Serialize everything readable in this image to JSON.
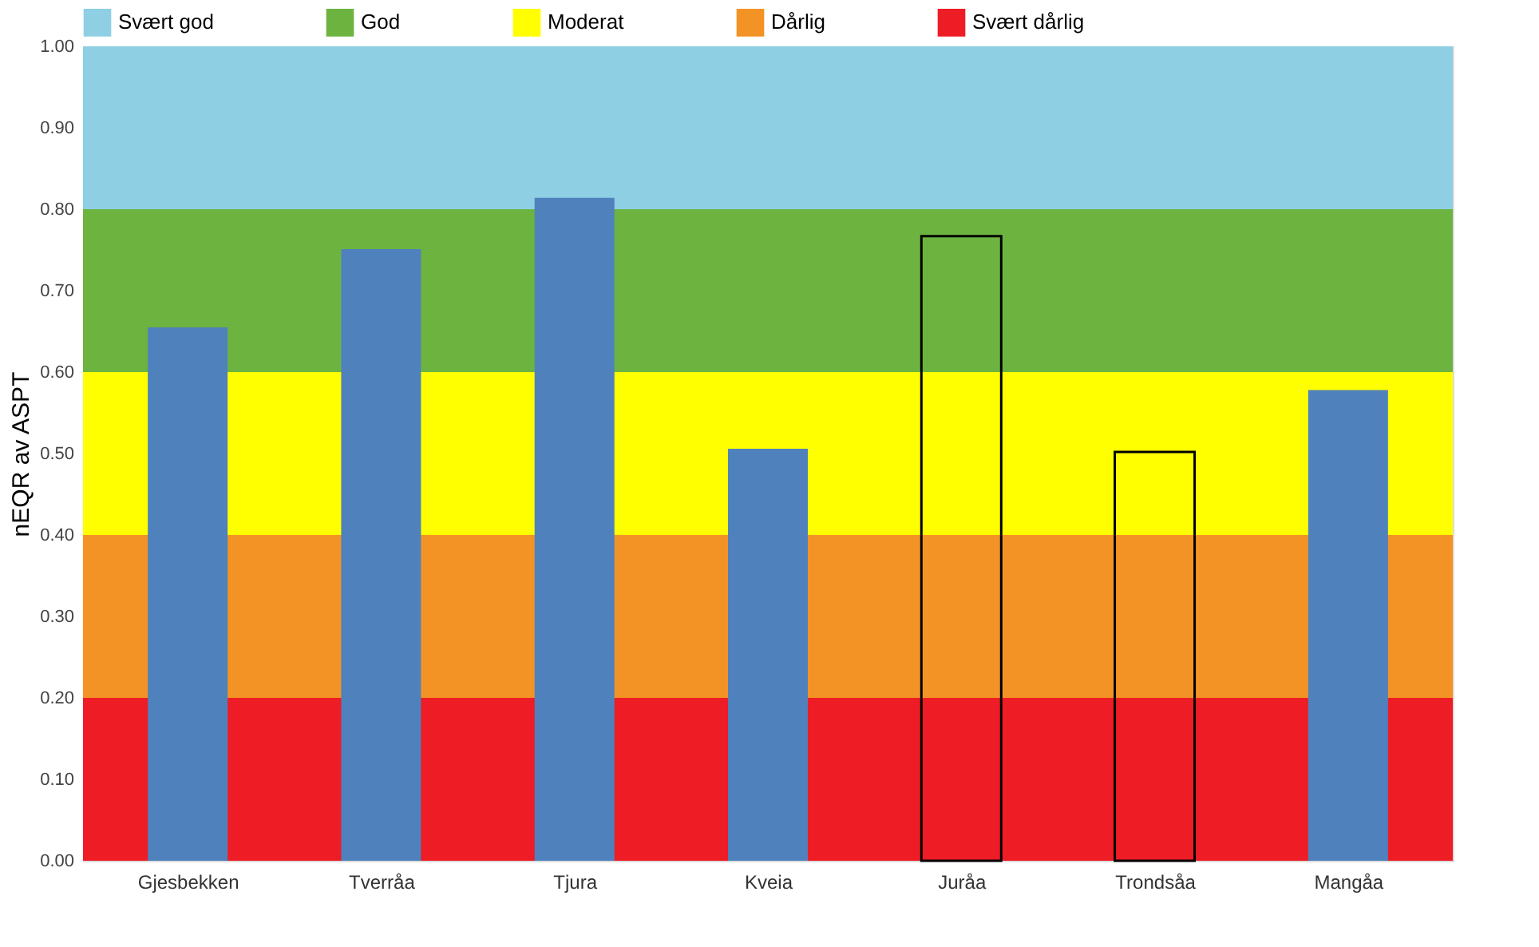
{
  "chart_data": {
    "type": "bar",
    "ylabel": "nEQR av ASPT",
    "categories": [
      "Gjesbekken",
      "Tverråa",
      "Tjura",
      "Kveia",
      "Juråa",
      "Trondsåa",
      "Mangåa"
    ],
    "series": [
      {
        "color": "#4f81bd",
        "values": [
          0.655,
          0.751,
          0.814,
          0.506,
          null,
          null,
          0.578
        ]
      },
      {
        "color": "#000000",
        "line_style": "solid",
        "values": [
          null,
          null,
          null,
          null,
          0.767,
          0.502,
          null
        ]
      }
    ],
    "ylim": [
      0,
      1
    ],
    "yticks": [
      {
        "value": 0,
        "label": "0.00"
      },
      {
        "value": 0.1,
        "label": "0.10"
      },
      {
        "value": 0.2,
        "label": "0.20"
      },
      {
        "value": 0.3,
        "label": "0.30"
      },
      {
        "value": 0.4,
        "label": "0.40"
      },
      {
        "value": 0.5,
        "label": "0.50"
      },
      {
        "value": 0.6,
        "label": "0.60"
      },
      {
        "value": 0.7,
        "label": "0.70"
      },
      {
        "value": 0.8,
        "label": "0.80"
      },
      {
        "value": 0.9,
        "label": "0.90"
      },
      {
        "value": 1,
        "label": "1.00"
      }
    ],
    "bands": [
      {
        "axis": "y",
        "from": 0.8,
        "to": 1.0,
        "label": "Svært god",
        "color": "#8ecfe3"
      },
      {
        "axis": "y",
        "from": 0.6,
        "to": 0.8,
        "label": "God",
        "color": "#6cb43f"
      },
      {
        "axis": "y",
        "from": 0.4,
        "to": 0.6,
        "label": "Moderat",
        "color": "#ffff00"
      },
      {
        "axis": "y",
        "from": 0.2,
        "to": 0.4,
        "label": "Dårlig",
        "color": "#f39325"
      },
      {
        "axis": "y",
        "from": 0.0,
        "to": 0.2,
        "label": "Svært dårlig",
        "color": "#ee1c25"
      }
    ],
    "legend": "top"
  }
}
